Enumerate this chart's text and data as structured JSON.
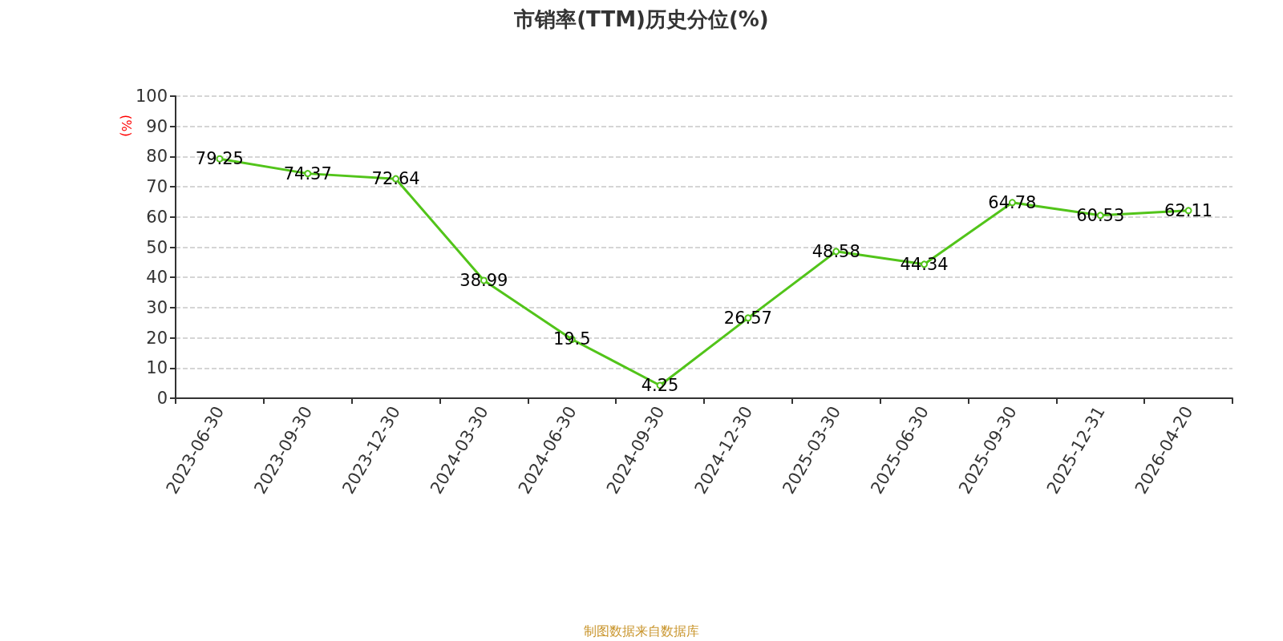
{
  "chart_data": {
    "type": "line",
    "title": "市销率(TTM)历史分位(%)",
    "ylabel": "(%)",
    "categories": [
      "2023-06-30",
      "2023-09-30",
      "2023-12-30",
      "2024-03-30",
      "2024-06-30",
      "2024-09-30",
      "2024-12-30",
      "2025-03-30",
      "2025-06-30",
      "2025-09-30",
      "2025-12-31",
      "2026-04-20"
    ],
    "series": [
      {
        "color": "#52c41a",
        "values": [
          79.25,
          74.37,
          72.64,
          38.99,
          19.5,
          4.25,
          26.57,
          48.58,
          44.34,
          64.78,
          60.53,
          62.11
        ]
      }
    ],
    "ylim": [
      0,
      100
    ],
    "yticks": [
      0,
      10,
      20,
      30,
      40,
      50,
      60,
      70,
      80,
      90,
      100
    ],
    "grid": "y",
    "marker": "circle",
    "line_style": "solid",
    "data_labels": true,
    "annotations": [
      "制图数据来自数据库"
    ]
  }
}
